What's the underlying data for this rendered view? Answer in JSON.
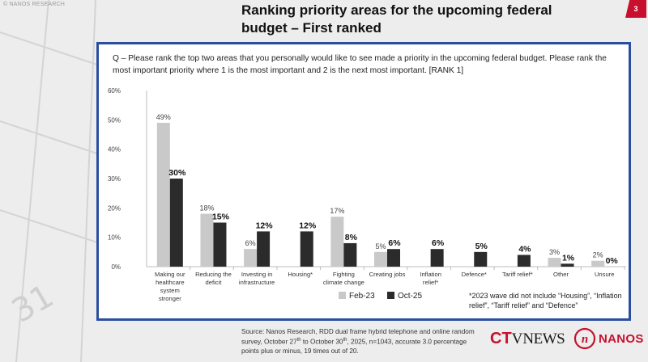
{
  "header": {
    "watermark": "© NANOS RESEARCH",
    "title_line1": "Ranking priority areas for the upcoming federal",
    "title_line2": "budget – First ranked",
    "page_number": "3"
  },
  "question": "Q – Please rank the top two areas that you personally would like to see made a priority in the upcoming federal budget. Please rank the most important priority where 1 is the most important and 2 is the next most important. [RANK 1]",
  "footnote": "*2023 wave did not include “Housing”, “Inflation relief”, “Tariff relief” and “Defence”",
  "source": {
    "part1": "Source: Nanos Research, RDD dual frame hybrid telephone and online random survey, October 27",
    "sup1": "th",
    "part2": " to October 30",
    "sup2": "th",
    "part3": ", 2025, n=1043, accurate 3.0 percentage points plus or minus, 19 times out of 20."
  },
  "logos": {
    "ctv_c": "C",
    "ctv_t": "T",
    "ctv_v": "V",
    "ctv_news": "NEWS",
    "nanos_mark": "n",
    "nanos": "NANOS"
  },
  "colors": {
    "feb23": "#c9c9c9",
    "oct25": "#2b2b2b",
    "frame": "#2b4f9e",
    "brand_red": "#c8102e"
  },
  "chart_data": {
    "type": "bar",
    "categories": [
      "Making our healthcare system stronger",
      "Reducing the deficit",
      "Investing in infrastructure",
      "Housing*",
      "Fighting climate change",
      "Creating jobs",
      "Inflation relief*",
      "Defence*",
      "Tariff relief*",
      "Other",
      "Unsure"
    ],
    "category_lines": [
      [
        "Making our",
        "healthcare",
        "system",
        "stronger"
      ],
      [
        "Reducing the",
        "deficit"
      ],
      [
        "Investing in",
        "infrastructure"
      ],
      [
        "Housing*"
      ],
      [
        "Fighting",
        "climate change"
      ],
      [
        "Creating jobs"
      ],
      [
        "Inflation",
        "relief*"
      ],
      [
        "Defence*"
      ],
      [
        "Tariff relief*"
      ],
      [
        "Other"
      ],
      [
        "Unsure"
      ]
    ],
    "series": [
      {
        "name": "Feb-23",
        "values": [
          49,
          18,
          6,
          null,
          17,
          5,
          null,
          null,
          null,
          3,
          2
        ]
      },
      {
        "name": "Oct-25",
        "values": [
          30,
          15,
          12,
          12,
          8,
          6,
          6,
          5,
          4,
          1,
          0
        ]
      }
    ],
    "ylim": [
      0,
      60
    ],
    "yticks": [
      "0%",
      "10%",
      "20%",
      "30%",
      "40%",
      "50%",
      "60%"
    ],
    "legend_position": "bottom-center",
    "grid": false
  }
}
